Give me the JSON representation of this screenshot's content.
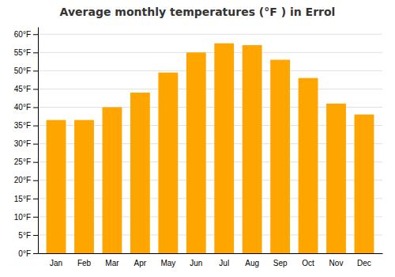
{
  "chart_data": {
    "type": "bar",
    "title": "Average monthly temperatures (°F ) in Errol",
    "categories": [
      "Jan",
      "Feb",
      "Mar",
      "Apr",
      "May",
      "Jun",
      "Jul",
      "Aug",
      "Sep",
      "Oct",
      "Nov",
      "Dec"
    ],
    "values": [
      36.5,
      36.5,
      40.0,
      44.0,
      49.5,
      55.0,
      57.5,
      57.0,
      53.0,
      48.0,
      41.0,
      38.0
    ],
    "color": "#FFA500",
    "ylim": [
      0,
      62
    ],
    "yticks": [
      {
        "value": 0,
        "label": "0°F"
      },
      {
        "value": 5,
        "label": "5°F"
      },
      {
        "value": 10,
        "label": "10°F"
      },
      {
        "value": 15,
        "label": "15°F"
      },
      {
        "value": 20,
        "label": "20°F"
      },
      {
        "value": 25,
        "label": "25°F"
      },
      {
        "value": 30,
        "label": "30°F"
      },
      {
        "value": 35,
        "label": "35°F"
      },
      {
        "value": 40,
        "label": "40°F"
      },
      {
        "value": 45,
        "label": "45°F"
      },
      {
        "value": 50,
        "label": "50°F"
      },
      {
        "value": 55,
        "label": "55°F"
      },
      {
        "value": 60,
        "label": "60°F"
      }
    ],
    "grid": true
  }
}
